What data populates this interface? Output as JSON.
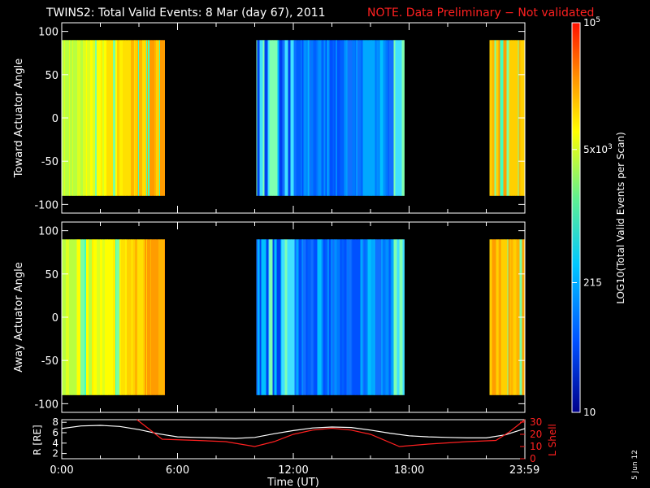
{
  "header": {
    "title": "TWINS2: Total Valid Events:  8 Mar (day  67), 2011",
    "note": "NOTE. Data Preliminary − Not validated",
    "note_color": "#ff2020"
  },
  "chart_data": [
    {
      "type": "heatmap",
      "panel": "toward",
      "ylabel": "Toward Actuator Angle",
      "ylim": [
        -110,
        110
      ],
      "yticks": [
        100,
        50,
        0,
        -50,
        -100
      ],
      "xlim_hours": [
        0,
        24
      ],
      "data_ylim": [
        -90,
        90
      ],
      "coverage": [
        {
          "start": "0:00",
          "end": "5:20",
          "level": "high"
        },
        {
          "start": "10:05",
          "end": "17:45",
          "level": "low"
        },
        {
          "start": "22:10",
          "end": "23:59",
          "level": "high"
        }
      ]
    },
    {
      "type": "heatmap",
      "panel": "away",
      "ylabel": "Away Actuator Angle",
      "ylim": [
        -110,
        110
      ],
      "yticks": [
        100,
        50,
        0,
        -50,
        -100
      ],
      "xlim_hours": [
        0,
        24
      ],
      "data_ylim": [
        -90,
        90
      ],
      "coverage": [
        {
          "start": "0:00",
          "end": "5:20",
          "level": "high"
        },
        {
          "start": "10:05",
          "end": "17:45",
          "level": "low"
        },
        {
          "start": "22:10",
          "end": "23:59",
          "level": "high"
        }
      ]
    },
    {
      "type": "line",
      "panel": "orbit",
      "xlabel": "Time (UT)",
      "xticks": [
        "0:00",
        "6:00",
        "12:00",
        "18:00",
        "23:59"
      ],
      "ylabel_left": "R [RE]",
      "ylabel_right": "L Shell",
      "yticks_left": [
        "8",
        "6",
        "4",
        "2"
      ],
      "yticks_right": [
        "30",
        "20",
        "10",
        "0"
      ],
      "ylim_left": [
        1,
        8.5
      ],
      "ylim_right": [
        0,
        32
      ],
      "series": [
        {
          "name": "R [RE]",
          "color": "#ffffff",
          "x": [
            0,
            1,
            2,
            3,
            4,
            5,
            6,
            7,
            8,
            9,
            10,
            11,
            12,
            13,
            14,
            15,
            16,
            17,
            18,
            19,
            20,
            21,
            22,
            23,
            24
          ],
          "y": [
            6.8,
            7.3,
            7.4,
            7.2,
            6.6,
            5.8,
            5.2,
            5.1,
            5.0,
            4.9,
            5.1,
            5.8,
            6.4,
            6.9,
            7.1,
            7.0,
            6.5,
            5.9,
            5.4,
            5.2,
            5.1,
            5.0,
            5.0,
            5.6,
            6.8
          ]
        },
        {
          "name": "L Shell",
          "color": "#ff2020",
          "x": [
            3.9,
            5.2,
            7.0,
            8.5,
            10.0,
            11.0,
            12.0,
            13.0,
            14.0,
            15.0,
            16.0,
            17.5,
            19.0,
            21.0,
            22.5,
            23.2,
            24.0
          ],
          "y": [
            32,
            16,
            15,
            14,
            10,
            14,
            20,
            23.5,
            25,
            23.5,
            20,
            10,
            12,
            14,
            15,
            22,
            32
          ]
        }
      ]
    }
  ],
  "colorbar": {
    "label": "LOG10(Total Valid Events per Scan)",
    "ticks": [
      "10^5",
      "5x10^3",
      "215",
      "10"
    ],
    "tick_positions_log10": [
      5,
      3.699,
      2.332,
      1
    ],
    "range_log10": [
      1,
      5
    ]
  },
  "side_note": "5 Jun 12"
}
